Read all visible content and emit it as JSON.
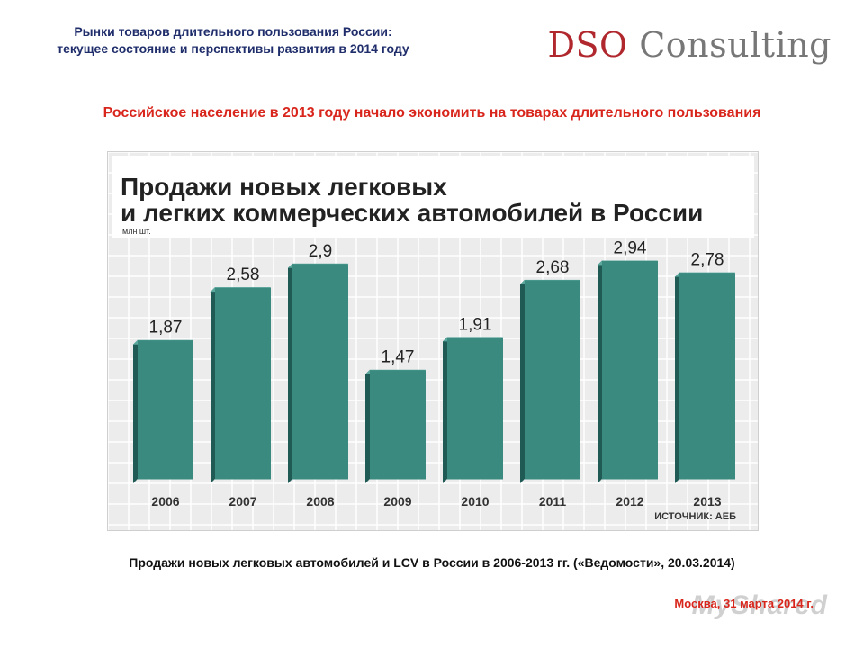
{
  "header": {
    "title_line1": "Рынки товаров длительного пользования России:",
    "title_line2": "текущее состояние и перспективы развития в 2014 году",
    "brand_part1": "DSO",
    "brand_part2": " Consulting"
  },
  "subtitle": "Российское население в 2013 году начало экономить на товарах длительного пользования",
  "caption": "Продажи новых легковых автомобилей и LCV в России в 2006-2013 гг. («Ведомости», 20.03.2014)",
  "footer": "Москва, 31 марта 2014 г.",
  "watermark": "MyShared",
  "colors": {
    "bar_front": "#3a8a80",
    "bar_side": "#1f5a54",
    "bar_top": "#5aa89e",
    "grid": "#ffffff",
    "header_blue": "#1f2d6b",
    "accent_red": "#d9261c"
  },
  "chart_data": {
    "type": "bar",
    "title": "Продажи новых легковых и легких коммерческих автомобилей в России",
    "title_line1": "Продажи новых легковых",
    "title_line2": "и легких коммерческих автомобилей в России",
    "unit_label": "млн шт.",
    "source": "ИСТОЧНИК: АЕБ",
    "categories": [
      "2006",
      "2007",
      "2008",
      "2009",
      "2010",
      "2011",
      "2012",
      "2013"
    ],
    "values": [
      1.87,
      2.58,
      2.9,
      1.47,
      1.91,
      2.68,
      2.94,
      2.78
    ],
    "value_labels": [
      "1,87",
      "2,58",
      "2,9",
      "1,47",
      "1,91",
      "2,68",
      "2,94",
      "2,78"
    ],
    "ylim": [
      0,
      3.2
    ],
    "grid": true
  }
}
